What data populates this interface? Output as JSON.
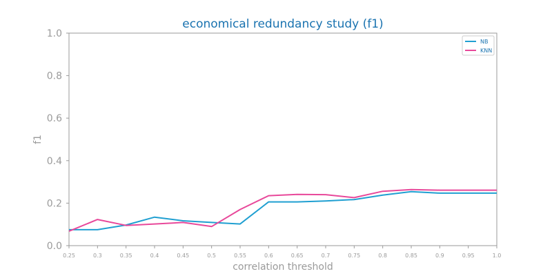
{
  "chart_data": {
    "type": "line",
    "title": "economical redundancy study (f1)",
    "xlabel": "correlation threshold",
    "ylabel": "f1",
    "x": [
      0.25,
      0.3,
      0.35,
      0.4,
      0.45,
      0.5,
      0.55,
      0.6,
      0.65,
      0.7,
      0.75,
      0.8,
      0.85,
      0.9,
      0.95,
      1.0
    ],
    "x_tick_labels": [
      "0.25",
      "0.3",
      "0.35",
      "0.4",
      "0.45",
      "0.5",
      "0.55",
      "0.6",
      "0.65",
      "0.7",
      "0.75",
      "0.8",
      "0.85",
      "0.9",
      "0.95",
      "1.0"
    ],
    "y_ticks": [
      0.0,
      0.2,
      0.4,
      0.6,
      0.8,
      1.0
    ],
    "y_tick_labels": [
      "0.0",
      "0.2",
      "0.4",
      "0.6",
      "0.8",
      "1.0"
    ],
    "xlim": [
      0.25,
      1.0
    ],
    "ylim": [
      0.0,
      1.0
    ],
    "grid": false,
    "legend_position": "top-right",
    "series": [
      {
        "name": "NB",
        "color": "#1f9fd1",
        "values": [
          0.075,
          0.075,
          0.097,
          0.134,
          0.117,
          0.109,
          0.102,
          0.206,
          0.206,
          0.21,
          0.217,
          0.238,
          0.254,
          0.247,
          0.247,
          0.247
        ]
      },
      {
        "name": "KNN",
        "color": "#e8489a",
        "values": [
          0.068,
          0.123,
          0.095,
          0.102,
          0.109,
          0.09,
          0.17,
          0.235,
          0.241,
          0.24,
          0.226,
          0.256,
          0.264,
          0.261,
          0.261,
          0.261
        ]
      }
    ]
  }
}
